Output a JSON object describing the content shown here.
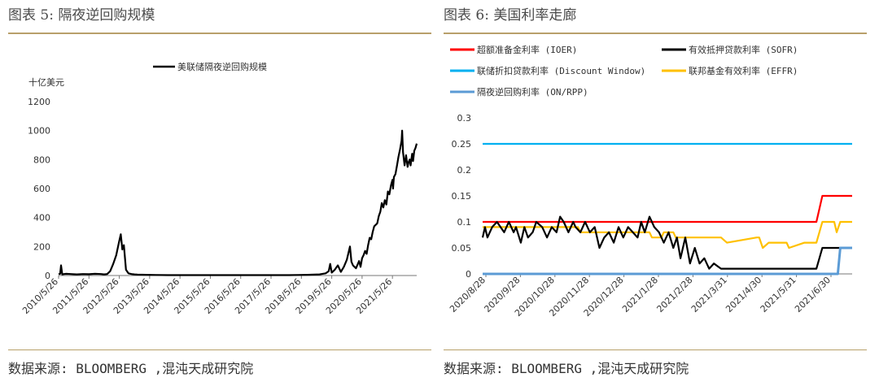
{
  "left": {
    "title": "图表 5: 隔夜逆回购规模",
    "source": "数据来源: BLOOMBERG ,混沌天成研究院",
    "chart_data": {
      "type": "line",
      "unit_label": "十亿美元",
      "ylim": [
        0,
        1200
      ],
      "yticks": [
        "0",
        "200",
        "400",
        "600",
        "800",
        "1000",
        "1200"
      ],
      "xticks": [
        "2010/5/26",
        "2011/5/26",
        "2012/5/26",
        "2013/5/26",
        "2014/5/26",
        "2015/5/26",
        "2016/5/26",
        "2017/5/26",
        "2018/5/26",
        "2019/5/26",
        "2020/5/26",
        "2021/5/26"
      ],
      "legend_position": "top",
      "series": [
        {
          "name": "美联储隔夜逆回购规模",
          "color": "#000000",
          "x": [
            2010.4,
            2010.45,
            2010.48,
            2010.52,
            2010.58,
            2010.65,
            2010.8,
            2011.0,
            2011.2,
            2011.4,
            2011.6,
            2011.8,
            2011.9,
            2012.0,
            2012.1,
            2012.2,
            2012.3,
            2012.38,
            2012.45,
            2012.5,
            2012.55,
            2012.62,
            2012.7,
            2012.8,
            2012.9,
            2013.0,
            2013.3,
            2013.6,
            2014.0,
            2014.5,
            2015.0,
            2015.5,
            2016.0,
            2016.5,
            2017.0,
            2017.5,
            2018.0,
            2018.3,
            2018.6,
            2018.8,
            2019.0,
            2019.2,
            2019.3,
            2019.35,
            2019.4,
            2019.5,
            2019.6,
            2019.7,
            2019.8,
            2019.9,
            2020.0,
            2020.05,
            2020.1,
            2020.2,
            2020.3,
            2020.35,
            2020.4,
            2020.45,
            2020.5,
            2020.55,
            2020.6,
            2020.65,
            2020.7,
            2020.75,
            2020.8,
            2020.85,
            2020.9,
            2020.95,
            2021.0,
            2021.05,
            2021.1,
            2021.15,
            2021.2,
            2021.25,
            2021.3,
            2021.35,
            2021.4,
            2021.42,
            2021.45,
            2021.5,
            2021.55,
            2021.6,
            2021.65,
            2021.7,
            2021.72,
            2021.75,
            2021.8,
            2021.85,
            2021.9,
            2021.93,
            2021.97,
            2022.0,
            2022.05,
            2022.08,
            2022.12,
            2022.16,
            2022.2
          ],
          "y": [
            10,
            12,
            70,
            8,
            10,
            12,
            10,
            8,
            10,
            9,
            12,
            10,
            8,
            10,
            30,
            80,
            140,
            220,
            285,
            180,
            210,
            40,
            15,
            10,
            8,
            6,
            5,
            4,
            3,
            3,
            3,
            3,
            3,
            3,
            3,
            3,
            3,
            4,
            5,
            6,
            8,
            15,
            30,
            80,
            20,
            40,
            70,
            25,
            60,
            110,
            200,
            95,
            70,
            50,
            100,
            60,
            120,
            140,
            170,
            150,
            210,
            260,
            250,
            300,
            340,
            350,
            360,
            410,
            440,
            500,
            470,
            520,
            490,
            580,
            560,
            620,
            660,
            600,
            680,
            700,
            760,
            820,
            870,
            930,
            1000,
            850,
            760,
            830,
            750,
            780,
            800,
            760,
            840,
            790,
            860,
            880,
            910
          ]
        }
      ]
    }
  },
  "right": {
    "title": "图表 6: 美国利率走廊",
    "source": "数据来源: BLOOMBERG ,混沌天成研究院",
    "chart_data": {
      "type": "line",
      "ylim": [
        0,
        0.3
      ],
      "yticks": [
        "0",
        "0.05",
        "0.1",
        "0.15",
        "0.2",
        "0.25",
        "0.3"
      ],
      "xticks": [
        "2020/8/28",
        "2020/9/28",
        "2020/10/28",
        "2020/11/28",
        "2020/12/28",
        "2021/1/28",
        "2021/2/28",
        "2021/3/31",
        "2021/4/30",
        "2021/5/31",
        "2021/6/30"
      ],
      "legend_position": "top",
      "x_note": "x values are days counted from 2020/8/28",
      "series": [
        {
          "name": "超额准备金利率 (IOER)",
          "color": "#ff0000",
          "x": [
            0,
            280,
            285,
            310
          ],
          "y": [
            0.1,
            0.1,
            0.15,
            0.15
          ]
        },
        {
          "name": "有效抵押贷款利率 (SOFR)",
          "color": "#000000",
          "x": [
            0,
            2,
            4,
            8,
            12,
            15,
            18,
            22,
            26,
            28,
            32,
            35,
            38,
            42,
            45,
            50,
            54,
            58,
            62,
            65,
            68,
            72,
            76,
            78,
            82,
            86,
            90,
            94,
            98,
            102,
            106,
            110,
            114,
            118,
            122,
            126,
            130,
            133,
            136,
            140,
            144,
            148,
            152,
            156,
            160,
            163,
            166,
            170,
            174,
            178,
            182,
            186,
            190,
            194,
            200,
            210,
            220,
            230,
            240,
            250,
            260,
            270,
            275,
            280,
            285,
            300,
            310
          ],
          "y": [
            0.07,
            0.09,
            0.07,
            0.09,
            0.1,
            0.09,
            0.08,
            0.1,
            0.08,
            0.09,
            0.06,
            0.09,
            0.07,
            0.08,
            0.1,
            0.09,
            0.07,
            0.09,
            0.08,
            0.11,
            0.1,
            0.08,
            0.1,
            0.09,
            0.08,
            0.1,
            0.08,
            0.09,
            0.05,
            0.07,
            0.08,
            0.06,
            0.09,
            0.07,
            0.09,
            0.08,
            0.07,
            0.1,
            0.08,
            0.11,
            0.09,
            0.08,
            0.06,
            0.08,
            0.05,
            0.07,
            0.03,
            0.07,
            0.02,
            0.05,
            0.02,
            0.03,
            0.01,
            0.02,
            0.01,
            0.01,
            0.01,
            0.01,
            0.01,
            0.01,
            0.01,
            0.01,
            0.01,
            0.01,
            0.05,
            0.05,
            0.05
          ]
        },
        {
          "name": "联储折扣贷款利率 (Discount Window)",
          "color": "#00b0f0",
          "x": [
            0,
            310
          ],
          "y": [
            0.25,
            0.25
          ]
        },
        {
          "name": "联邦基金有效利率 (EFFR)",
          "color": "#ffc000",
          "x": [
            0,
            60,
            62,
            80,
            82,
            140,
            142,
            150,
            152,
            160,
            162,
            175,
            177,
            200,
            205,
            230,
            232,
            235,
            240,
            255,
            257,
            270,
            272,
            280,
            285,
            295,
            297,
            300,
            310
          ],
          "y": [
            0.09,
            0.09,
            0.09,
            0.09,
            0.08,
            0.08,
            0.07,
            0.07,
            0.08,
            0.08,
            0.07,
            0.07,
            0.07,
            0.07,
            0.06,
            0.07,
            0.07,
            0.05,
            0.06,
            0.06,
            0.05,
            0.06,
            0.06,
            0.06,
            0.1,
            0.1,
            0.08,
            0.1,
            0.1
          ]
        },
        {
          "name": "隔夜逆回购利率 (ON/RPP)",
          "color": "#5b9bd5",
          "x": [
            0,
            298,
            300,
            310
          ],
          "y": [
            0,
            0,
            0.05,
            0.05
          ]
        }
      ]
    }
  }
}
